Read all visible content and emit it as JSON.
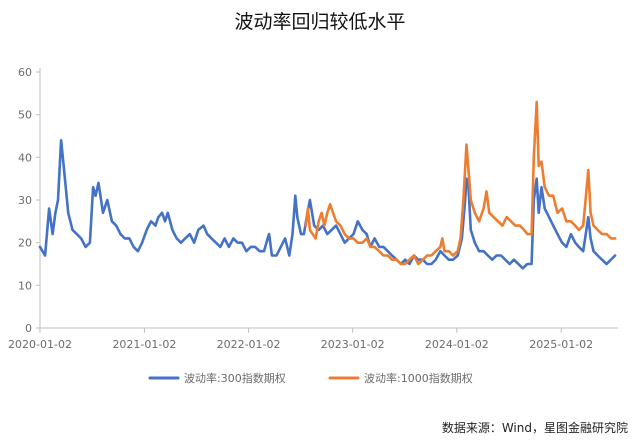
{
  "chart_data": {
    "type": "line",
    "title": "波动率回归较低水平",
    "source": "数据来源：Wind，星图金融研究院",
    "xlabel": "",
    "ylabel": "",
    "ylim": [
      0,
      60
    ],
    "yticks": [
      0,
      10,
      20,
      30,
      40,
      50,
      60
    ],
    "xticks": [
      "2020-01-02",
      "2021-01-02",
      "2022-01-02",
      "2023-01-02",
      "2024-01-02",
      "2025-01-02"
    ],
    "grid": false,
    "legend_position": "bottom",
    "series": [
      {
        "name": "波动率:300指数期权",
        "color": "#4472C4",
        "points": [
          [
            "2020-01-02",
            19
          ],
          [
            "2020-01-20",
            17
          ],
          [
            "2020-02-03",
            28
          ],
          [
            "2020-02-15",
            22
          ],
          [
            "2020-02-25",
            27
          ],
          [
            "2020-03-05",
            30
          ],
          [
            "2020-03-16",
            44
          ],
          [
            "2020-03-25",
            38
          ],
          [
            "2020-04-10",
            27
          ],
          [
            "2020-04-25",
            23
          ],
          [
            "2020-05-10",
            22
          ],
          [
            "2020-05-25",
            21
          ],
          [
            "2020-06-10",
            19
          ],
          [
            "2020-06-25",
            20
          ],
          [
            "2020-07-06",
            33
          ],
          [
            "2020-07-15",
            31
          ],
          [
            "2020-07-25",
            34
          ],
          [
            "2020-08-10",
            27
          ],
          [
            "2020-08-25",
            30
          ],
          [
            "2020-09-10",
            25
          ],
          [
            "2020-09-25",
            24
          ],
          [
            "2020-10-10",
            22
          ],
          [
            "2020-10-25",
            21
          ],
          [
            "2020-11-10",
            21
          ],
          [
            "2020-11-25",
            19
          ],
          [
            "2020-12-10",
            18
          ],
          [
            "2020-12-25",
            20
          ],
          [
            "2021-01-10",
            23
          ],
          [
            "2021-01-25",
            25
          ],
          [
            "2021-02-10",
            24
          ],
          [
            "2021-02-20",
            26
          ],
          [
            "2021-03-05",
            27
          ],
          [
            "2021-03-15",
            25
          ],
          [
            "2021-03-25",
            27
          ],
          [
            "2021-04-10",
            23
          ],
          [
            "2021-04-25",
            21
          ],
          [
            "2021-05-10",
            20
          ],
          [
            "2021-05-25",
            21
          ],
          [
            "2021-06-10",
            22
          ],
          [
            "2021-06-25",
            20
          ],
          [
            "2021-07-10",
            23
          ],
          [
            "2021-07-28",
            24
          ],
          [
            "2021-08-10",
            22
          ],
          [
            "2021-08-25",
            21
          ],
          [
            "2021-09-10",
            20
          ],
          [
            "2021-09-25",
            19
          ],
          [
            "2021-10-10",
            21
          ],
          [
            "2021-10-25",
            19
          ],
          [
            "2021-11-10",
            21
          ],
          [
            "2021-11-25",
            20
          ],
          [
            "2021-12-10",
            20
          ],
          [
            "2021-12-25",
            18
          ],
          [
            "2022-01-10",
            19
          ],
          [
            "2022-01-25",
            19
          ],
          [
            "2022-02-10",
            18
          ],
          [
            "2022-02-25",
            18
          ],
          [
            "2022-03-10",
            21
          ],
          [
            "2022-03-15",
            22
          ],
          [
            "2022-03-25",
            17
          ],
          [
            "2022-04-10",
            17
          ],
          [
            "2022-04-25",
            19
          ],
          [
            "2022-05-10",
            21
          ],
          [
            "2022-05-25",
            17
          ],
          [
            "2022-06-05",
            22
          ],
          [
            "2022-06-15",
            31
          ],
          [
            "2022-06-22",
            26
          ],
          [
            "2022-07-05",
            22
          ],
          [
            "2022-07-15",
            22
          ],
          [
            "2022-07-25",
            26
          ],
          [
            "2022-08-05",
            30
          ],
          [
            "2022-08-20",
            24
          ],
          [
            "2022-09-05",
            23
          ],
          [
            "2022-09-20",
            24
          ],
          [
            "2022-10-05",
            22
          ],
          [
            "2022-10-20",
            23
          ],
          [
            "2022-11-05",
            24
          ],
          [
            "2022-11-20",
            22
          ],
          [
            "2022-12-05",
            20
          ],
          [
            "2022-12-20",
            21
          ],
          [
            "2023-01-05",
            22
          ],
          [
            "2023-01-20",
            25
          ],
          [
            "2023-02-05",
            23
          ],
          [
            "2023-02-20",
            22
          ],
          [
            "2023-03-05",
            19
          ],
          [
            "2023-03-20",
            21
          ],
          [
            "2023-04-05",
            19
          ],
          [
            "2023-04-20",
            19
          ],
          [
            "2023-05-05",
            18
          ],
          [
            "2023-05-20",
            17
          ],
          [
            "2023-06-05",
            16
          ],
          [
            "2023-06-20",
            15
          ],
          [
            "2023-07-05",
            16
          ],
          [
            "2023-07-20",
            15
          ],
          [
            "2023-08-05",
            17
          ],
          [
            "2023-08-20",
            16
          ],
          [
            "2023-09-05",
            16
          ],
          [
            "2023-09-20",
            15
          ],
          [
            "2023-10-05",
            15
          ],
          [
            "2023-10-20",
            16
          ],
          [
            "2023-11-05",
            18
          ],
          [
            "2023-11-20",
            17
          ],
          [
            "2023-12-05",
            16
          ],
          [
            "2023-12-20",
            16
          ],
          [
            "2024-01-05",
            17
          ],
          [
            "2024-01-20",
            21
          ],
          [
            "2024-01-30",
            29
          ],
          [
            "2024-02-05",
            35
          ],
          [
            "2024-02-12",
            33
          ],
          [
            "2024-02-20",
            23
          ],
          [
            "2024-03-05",
            20
          ],
          [
            "2024-03-20",
            18
          ],
          [
            "2024-04-05",
            18
          ],
          [
            "2024-04-20",
            17
          ],
          [
            "2024-05-05",
            16
          ],
          [
            "2024-05-20",
            17
          ],
          [
            "2024-06-05",
            17
          ],
          [
            "2024-06-20",
            16
          ],
          [
            "2024-07-05",
            15
          ],
          [
            "2024-07-20",
            16
          ],
          [
            "2024-08-05",
            15
          ],
          [
            "2024-08-20",
            14
          ],
          [
            "2024-09-05",
            15
          ],
          [
            "2024-09-20",
            15
          ],
          [
            "2024-09-28",
            30
          ],
          [
            "2024-10-08",
            35
          ],
          [
            "2024-10-15",
            27
          ],
          [
            "2024-10-25",
            33
          ],
          [
            "2024-11-05",
            28
          ],
          [
            "2024-11-20",
            26
          ],
          [
            "2024-12-05",
            24
          ],
          [
            "2024-12-20",
            22
          ],
          [
            "2025-01-05",
            20
          ],
          [
            "2025-01-20",
            19
          ],
          [
            "2025-02-05",
            22
          ],
          [
            "2025-02-20",
            20
          ],
          [
            "2025-03-05",
            19
          ],
          [
            "2025-03-20",
            18
          ],
          [
            "2025-04-07",
            26
          ],
          [
            "2025-04-15",
            21
          ],
          [
            "2025-04-25",
            18
          ],
          [
            "2025-05-10",
            17
          ],
          [
            "2025-05-25",
            16
          ],
          [
            "2025-06-10",
            15
          ],
          [
            "2025-06-25",
            16
          ],
          [
            "2025-07-10",
            17
          ]
        ]
      },
      {
        "name": "波动率:1000指数期权",
        "color": "#ED7D31",
        "points": [
          [
            "2022-07-22",
            24
          ],
          [
            "2022-07-29",
            28
          ],
          [
            "2022-08-05",
            23
          ],
          [
            "2022-08-15",
            22
          ],
          [
            "2022-08-25",
            21
          ],
          [
            "2022-09-05",
            25
          ],
          [
            "2022-09-15",
            27
          ],
          [
            "2022-09-25",
            24
          ],
          [
            "2022-10-05",
            27
          ],
          [
            "2022-10-15",
            29
          ],
          [
            "2022-10-25",
            27
          ],
          [
            "2022-11-05",
            25
          ],
          [
            "2022-11-20",
            24
          ],
          [
            "2022-12-05",
            22
          ],
          [
            "2022-12-20",
            21
          ],
          [
            "2023-01-05",
            21
          ],
          [
            "2023-01-20",
            20
          ],
          [
            "2023-02-05",
            20
          ],
          [
            "2023-02-20",
            21
          ],
          [
            "2023-03-05",
            19
          ],
          [
            "2023-03-20",
            19
          ],
          [
            "2023-04-05",
            18
          ],
          [
            "2023-04-20",
            17
          ],
          [
            "2023-05-05",
            17
          ],
          [
            "2023-05-20",
            16
          ],
          [
            "2023-06-05",
            16
          ],
          [
            "2023-06-20",
            15
          ],
          [
            "2023-07-05",
            15
          ],
          [
            "2023-07-20",
            16
          ],
          [
            "2023-08-05",
            17
          ],
          [
            "2023-08-20",
            15
          ],
          [
            "2023-09-05",
            16
          ],
          [
            "2023-09-20",
            17
          ],
          [
            "2023-10-05",
            17
          ],
          [
            "2023-10-20",
            18
          ],
          [
            "2023-11-05",
            19
          ],
          [
            "2023-11-12",
            21
          ],
          [
            "2023-11-20",
            18
          ],
          [
            "2023-12-05",
            18
          ],
          [
            "2023-12-20",
            17
          ],
          [
            "2024-01-05",
            18
          ],
          [
            "2024-01-15",
            21
          ],
          [
            "2024-01-25",
            30
          ],
          [
            "2024-02-05",
            43
          ],
          [
            "2024-02-12",
            37
          ],
          [
            "2024-02-20",
            30
          ],
          [
            "2024-03-05",
            27
          ],
          [
            "2024-03-20",
            25
          ],
          [
            "2024-04-05",
            28
          ],
          [
            "2024-04-15",
            32
          ],
          [
            "2024-04-25",
            27
          ],
          [
            "2024-05-10",
            26
          ],
          [
            "2024-05-25",
            25
          ],
          [
            "2024-06-10",
            24
          ],
          [
            "2024-06-25",
            26
          ],
          [
            "2024-07-10",
            25
          ],
          [
            "2024-07-25",
            24
          ],
          [
            "2024-08-10",
            24
          ],
          [
            "2024-08-25",
            23
          ],
          [
            "2024-09-05",
            22
          ],
          [
            "2024-09-20",
            22
          ],
          [
            "2024-09-28",
            40
          ],
          [
            "2024-10-08",
            53
          ],
          [
            "2024-10-15",
            38
          ],
          [
            "2024-10-25",
            39
          ],
          [
            "2024-11-05",
            33
          ],
          [
            "2024-11-20",
            31
          ],
          [
            "2024-12-05",
            31
          ],
          [
            "2024-12-20",
            27
          ],
          [
            "2025-01-05",
            28
          ],
          [
            "2025-01-20",
            25
          ],
          [
            "2025-02-05",
            25
          ],
          [
            "2025-02-20",
            24
          ],
          [
            "2025-03-05",
            23
          ],
          [
            "2025-03-20",
            24
          ],
          [
            "2025-04-07",
            37
          ],
          [
            "2025-04-15",
            27
          ],
          [
            "2025-04-25",
            24
          ],
          [
            "2025-05-10",
            23
          ],
          [
            "2025-05-25",
            22
          ],
          [
            "2025-06-10",
            22
          ],
          [
            "2025-06-25",
            21
          ],
          [
            "2025-07-10",
            21
          ]
        ]
      }
    ]
  }
}
